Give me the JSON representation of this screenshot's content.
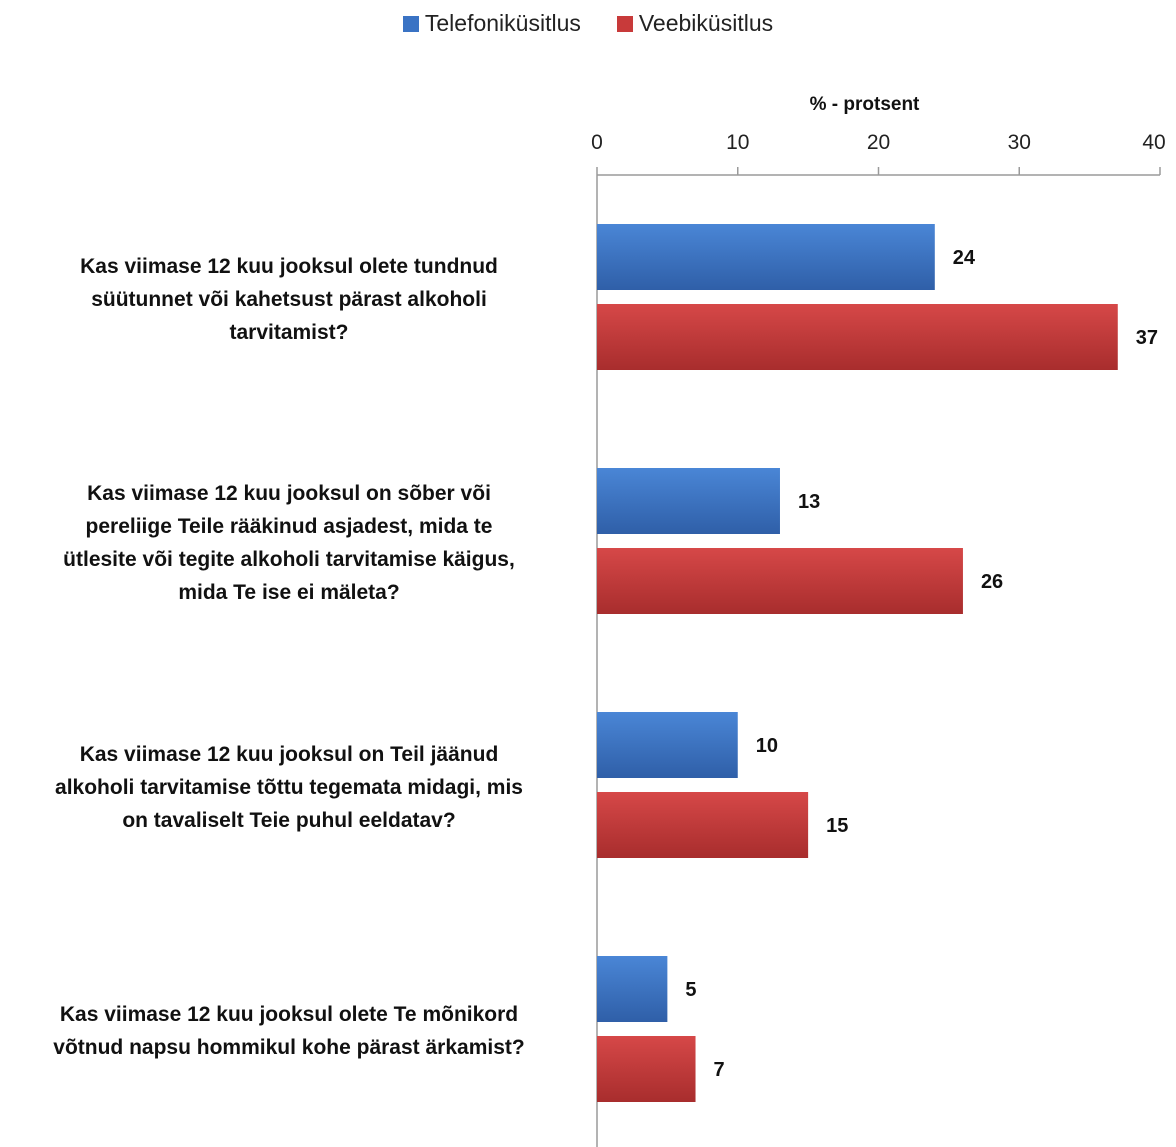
{
  "chart_data": {
    "type": "bar",
    "orientation": "horizontal",
    "xlabel": "% - protsent",
    "xlim": [
      0,
      40
    ],
    "xticks": [
      0,
      10,
      20,
      30,
      40
    ],
    "legend_position": "top",
    "grid": false,
    "categories": [
      "Kas viimase 12 kuu jooksul olete tundnud süütunnet või kahetsust pärast alkoholi tarvitamist?",
      "Kas viimase 12 kuu jooksul on sõber või pereliige Teile rääkinud asjadest, mida te ütlesite või tegite alkoholi tarvitamise käigus, mida Te ise ei mäleta?",
      "Kas viimase 12 kuu jooksul on Teil jäänud alkoholi tarvitamise tõttu tegemata midagi, mis on tavaliselt Teie puhul eeldatav?",
      "Kas viimase 12 kuu jooksul olete Te mõnikord võtnud napsu hommikul kohe pärast ärkamist?"
    ],
    "category_lines": [
      [
        "Kas viimase 12 kuu jooksul olete tundnud",
        "süütunnet või kahetsust pärast alkoholi",
        "tarvitamist?"
      ],
      [
        "Kas viimase 12 kuu jooksul on sõber või",
        "pereliige Teile rääkinud asjadest, mida te",
        "ütlesite või tegite alkoholi tarvitamise käigus,",
        "mida Te ise ei mäleta?"
      ],
      [
        "Kas viimase 12 kuu jooksul on Teil jäänud",
        "alkoholi tarvitamise tõttu tegemata midagi, mis",
        "on tavaliselt Teie puhul eeldatav?"
      ],
      [
        "Kas viimase 12 kuu jooksul olete Te mõnikord",
        "võtnud napsu hommikul kohe pärast ärkamist?"
      ]
    ],
    "series": [
      {
        "name": "Telefoniküsitlus",
        "color": "#3a73c4",
        "values": [
          24,
          13,
          10,
          5
        ]
      },
      {
        "name": "Veebiküsitlus",
        "color": "#c83a3a",
        "values": [
          37,
          26,
          15,
          7
        ]
      }
    ]
  }
}
